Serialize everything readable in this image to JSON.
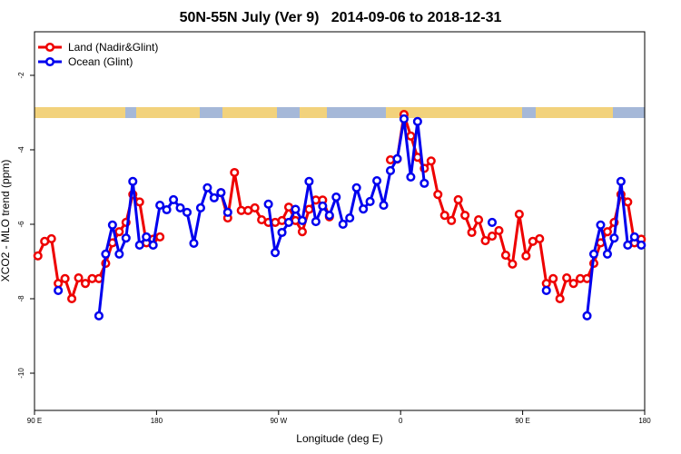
{
  "chart_data": {
    "type": "line",
    "title": "50N-55N July (Ver 9)   2014-09-06 to 2018-12-31",
    "xlabel": "Longitude (deg E)",
    "ylabel": "XCO2 - MLO trend (ppm)",
    "xlim": [
      90,
      540
    ],
    "ylim": [
      -11,
      -0.83
    ],
    "xticks": [
      {
        "value": 90,
        "label": "90 E"
      },
      {
        "value": 180,
        "label": "180"
      },
      {
        "value": 270,
        "label": "90 W"
      },
      {
        "value": 360,
        "label": "0"
      },
      {
        "value": 450,
        "label": "90 E"
      },
      {
        "value": 540,
        "label": "180"
      }
    ],
    "yticks": [
      -2,
      -4,
      -6,
      -8,
      -10
    ],
    "legend": "top-left",
    "x": [
      92.5,
      97.5,
      102.5,
      107.5,
      112.5,
      117.5,
      122.5,
      127.5,
      132.5,
      137.5,
      142.5,
      147.5,
      152.5,
      157.5,
      162.5,
      167.5,
      172.5,
      177.5,
      182.5,
      187.5,
      192.5,
      197.5,
      202.5,
      207.5,
      212.5,
      217.5,
      222.5,
      227.5,
      232.5,
      237.5,
      242.5,
      247.5,
      252.5,
      257.5,
      262.5,
      267.5,
      272.5,
      277.5,
      282.5,
      287.5,
      292.5,
      297.5,
      302.5,
      307.5,
      312.5,
      317.5,
      322.5,
      327.5,
      332.5,
      337.5,
      342.5,
      347.5,
      352.5,
      357.5,
      362.5,
      367.5,
      372.5,
      377.5,
      382.5,
      387.5,
      392.5,
      397.5,
      402.5,
      407.5,
      412.5,
      417.5,
      422.5,
      427.5,
      432.5,
      437.5,
      442.5,
      447.5,
      452.5,
      457.5,
      462.5,
      467.5,
      472.5,
      477.5,
      482.5,
      487.5,
      492.5,
      497.5,
      502.5,
      507.5,
      512.5,
      517.5,
      522.5,
      527.5,
      532.5,
      537.5
    ],
    "series": [
      {
        "name": "Land (Nadir&Glint)",
        "color": "#ee0000",
        "values": [
          -6.85,
          -6.46,
          -6.39,
          -7.59,
          -7.46,
          -8.0,
          -7.44,
          -7.59,
          -7.46,
          -7.46,
          -7.05,
          -6.5,
          -6.2,
          -5.95,
          -5.2,
          -5.4,
          -6.5,
          -6.4,
          -6.34,
          null,
          null,
          null,
          null,
          null,
          null,
          null,
          null,
          -5.15,
          -5.83,
          -4.61,
          -5.63,
          -5.63,
          -5.56,
          -5.88,
          -5.95,
          -5.95,
          -5.9,
          -5.54,
          -5.9,
          -6.2,
          -5.6,
          -5.35,
          -5.35,
          -5.8,
          null,
          null,
          null,
          null,
          null,
          null,
          null,
          null,
          -4.27,
          -4.25,
          -3.05,
          -3.63,
          -4.2,
          -4.5,
          -4.3,
          -5.2,
          -5.76,
          -5.9,
          -5.34,
          -5.76,
          -6.22,
          -5.88,
          -6.44,
          -6.32,
          -6.17,
          -6.83,
          -7.07,
          -5.73,
          -6.85,
          -6.46,
          -6.39,
          -7.59,
          -7.46,
          -8.0,
          -7.44,
          -7.59,
          -7.46,
          -7.46,
          -7.05,
          -6.5,
          -6.2,
          -5.95,
          -5.2,
          -5.4,
          -6.5,
          -6.4
        ]
      },
      {
        "name": "Ocean (Glint)",
        "color": "#0000ee",
        "values": [
          null,
          null,
          null,
          -7.78,
          null,
          null,
          null,
          null,
          null,
          -8.46,
          -6.8,
          -6.02,
          -6.8,
          -6.37,
          -4.85,
          -6.56,
          -6.34,
          -6.56,
          -5.49,
          -5.61,
          -5.34,
          -5.56,
          -5.68,
          -6.51,
          -5.56,
          -5.02,
          -5.29,
          -5.15,
          -5.68,
          null,
          null,
          null,
          null,
          null,
          -5.46,
          -6.76,
          -6.22,
          -5.95,
          -5.6,
          -5.9,
          -4.85,
          -5.93,
          -5.51,
          -5.76,
          -5.27,
          -6.0,
          -5.83,
          -5.02,
          -5.59,
          -5.39,
          -4.83,
          -5.49,
          -4.56,
          -4.24,
          -3.17,
          -4.73,
          -3.24,
          -4.9,
          null,
          null,
          null,
          null,
          null,
          null,
          null,
          null,
          null,
          -5.95,
          null,
          null,
          null,
          null,
          null,
          null,
          null,
          -7.78,
          null,
          null,
          null,
          null,
          null,
          -8.46,
          -6.8,
          -6.02,
          -6.8,
          -6.37,
          -4.85,
          -6.56,
          -6.34,
          -6.56
        ]
      }
    ]
  }
}
